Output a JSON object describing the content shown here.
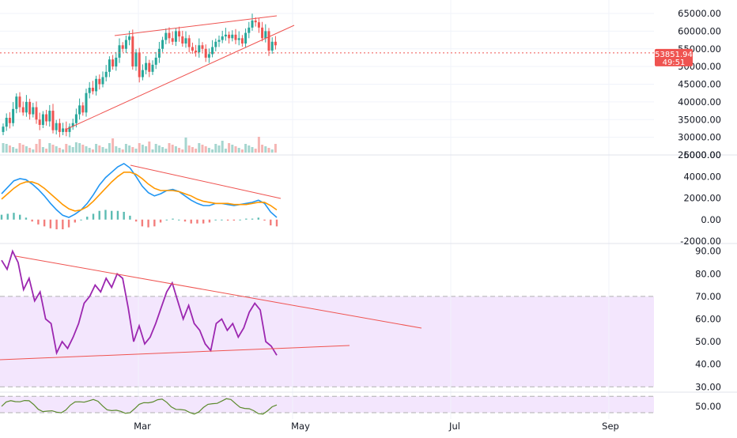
{
  "colors": {
    "up": "#26a69a",
    "down": "#ef5350",
    "volume_up": "#a5d6cf",
    "volume_down": "#f5b5b3",
    "trendline": "#ef5350",
    "macd_line": "#2196f3",
    "signal_line": "#ff9800",
    "rsi_line": "#9c27b0",
    "rsi_band": "#f3e6fd",
    "stoch_line": "#5b8a2c",
    "price_badge": "#ef5350",
    "grid": "#f0f3fa",
    "axis_text": "#131722"
  },
  "price_badge": {
    "price": "53851.94",
    "countdown": "49:51"
  },
  "chart_data": [
    {
      "type": "candlestick",
      "pane": "price",
      "title": "",
      "ylim": [
        25000,
        65000
      ],
      "yticks": [
        "65000.00",
        "60000.00",
        "55000.00",
        "50000.00",
        "45000.00",
        "40000.00",
        "35000.00",
        "30000.00",
        "25000.00"
      ],
      "x_ticks": [
        "Mar",
        "May",
        "Jul",
        "Sep"
      ],
      "last_price": 53851.94,
      "closes": [
        33000,
        35500,
        34000,
        38000,
        41500,
        38500,
        37000,
        40000,
        36500,
        38500,
        35000,
        33500,
        36500,
        34500,
        37500,
        32000,
        34000,
        31500,
        32500,
        31500,
        33000,
        34000,
        36500,
        39000,
        37000,
        42500,
        44000,
        43000,
        46500,
        45000,
        47000,
        48500,
        52000,
        50000,
        52500,
        56000,
        55000,
        57500,
        58500,
        50000,
        54000,
        47000,
        49000,
        51000,
        48500,
        50500,
        52500,
        55000,
        57500,
        59500,
        58000,
        57000,
        60000,
        58500,
        56500,
        58000,
        55500,
        54500,
        54000,
        56000,
        55000,
        52500,
        53500,
        55500,
        57000,
        57500,
        58500,
        59000,
        58000,
        59000,
        57500,
        58000,
        56500,
        59500,
        61000,
        63000,
        62500,
        61000,
        58000,
        60000,
        54500,
        57000,
        56000
      ],
      "volume_note": "volume bars at bottom of price pane"
    },
    {
      "type": "line",
      "pane": "macd",
      "ylim": [
        -2000,
        6000
      ],
      "yticks": [
        "6000.00",
        "4000.00",
        "2000.00",
        "0.00",
        "-2000.00"
      ],
      "series": [
        {
          "role": "macd",
          "values": [
            2400,
            3000,
            3600,
            3800,
            3700,
            3300,
            2800,
            2200,
            1500,
            900,
            400,
            200,
            500,
            900,
            1500,
            2300,
            3200,
            3900,
            4400,
            4900,
            5200,
            4800,
            4000,
            3100,
            2500,
            2200,
            2400,
            2700,
            2800,
            2600,
            2200,
            1800,
            1500,
            1300,
            1300,
            1500,
            1500,
            1400,
            1300,
            1400,
            1500,
            1600,
            1800,
            1500,
            700,
            200
          ]
        },
        {
          "role": "signal",
          "values": [
            1900,
            2400,
            2900,
            3300,
            3500,
            3500,
            3300,
            2900,
            2400,
            1900,
            1400,
            1000,
            800,
            900,
            1200,
            1700,
            2300,
            2900,
            3500,
            4000,
            4400,
            4400,
            4200,
            3800,
            3300,
            2900,
            2700,
            2700,
            2700,
            2600,
            2400,
            2200,
            1900,
            1700,
            1600,
            1500,
            1500,
            1500,
            1400,
            1400,
            1400,
            1500,
            1600,
            1600,
            1300,
            900
          ]
        }
      ]
    },
    {
      "type": "line",
      "pane": "rsi",
      "ylim": [
        28,
        92
      ],
      "yticks": [
        "90.00",
        "80.00",
        "70.00",
        "60.00",
        "50.00",
        "40.00",
        "30.00"
      ],
      "band": [
        30,
        70
      ],
      "values": [
        86,
        82,
        90,
        85,
        73,
        78,
        68,
        72,
        60,
        58,
        45,
        50,
        47,
        52,
        58,
        67,
        70,
        75,
        72,
        78,
        74,
        80,
        78,
        65,
        50,
        57,
        49,
        52,
        58,
        65,
        72,
        76,
        68,
        60,
        66,
        58,
        55,
        49,
        46,
        58,
        60,
        55,
        58,
        52,
        56,
        63,
        67,
        64,
        50,
        48,
        44
      ],
      "trendlines": "descending resistance from ~90 to ~55, rising support from ~41 to ~47"
    },
    {
      "type": "line",
      "pane": "stoch_rsi",
      "ylim": [
        40,
        60
      ],
      "yticks": [
        "50.00"
      ],
      "band": [
        45,
        58
      ]
    }
  ]
}
